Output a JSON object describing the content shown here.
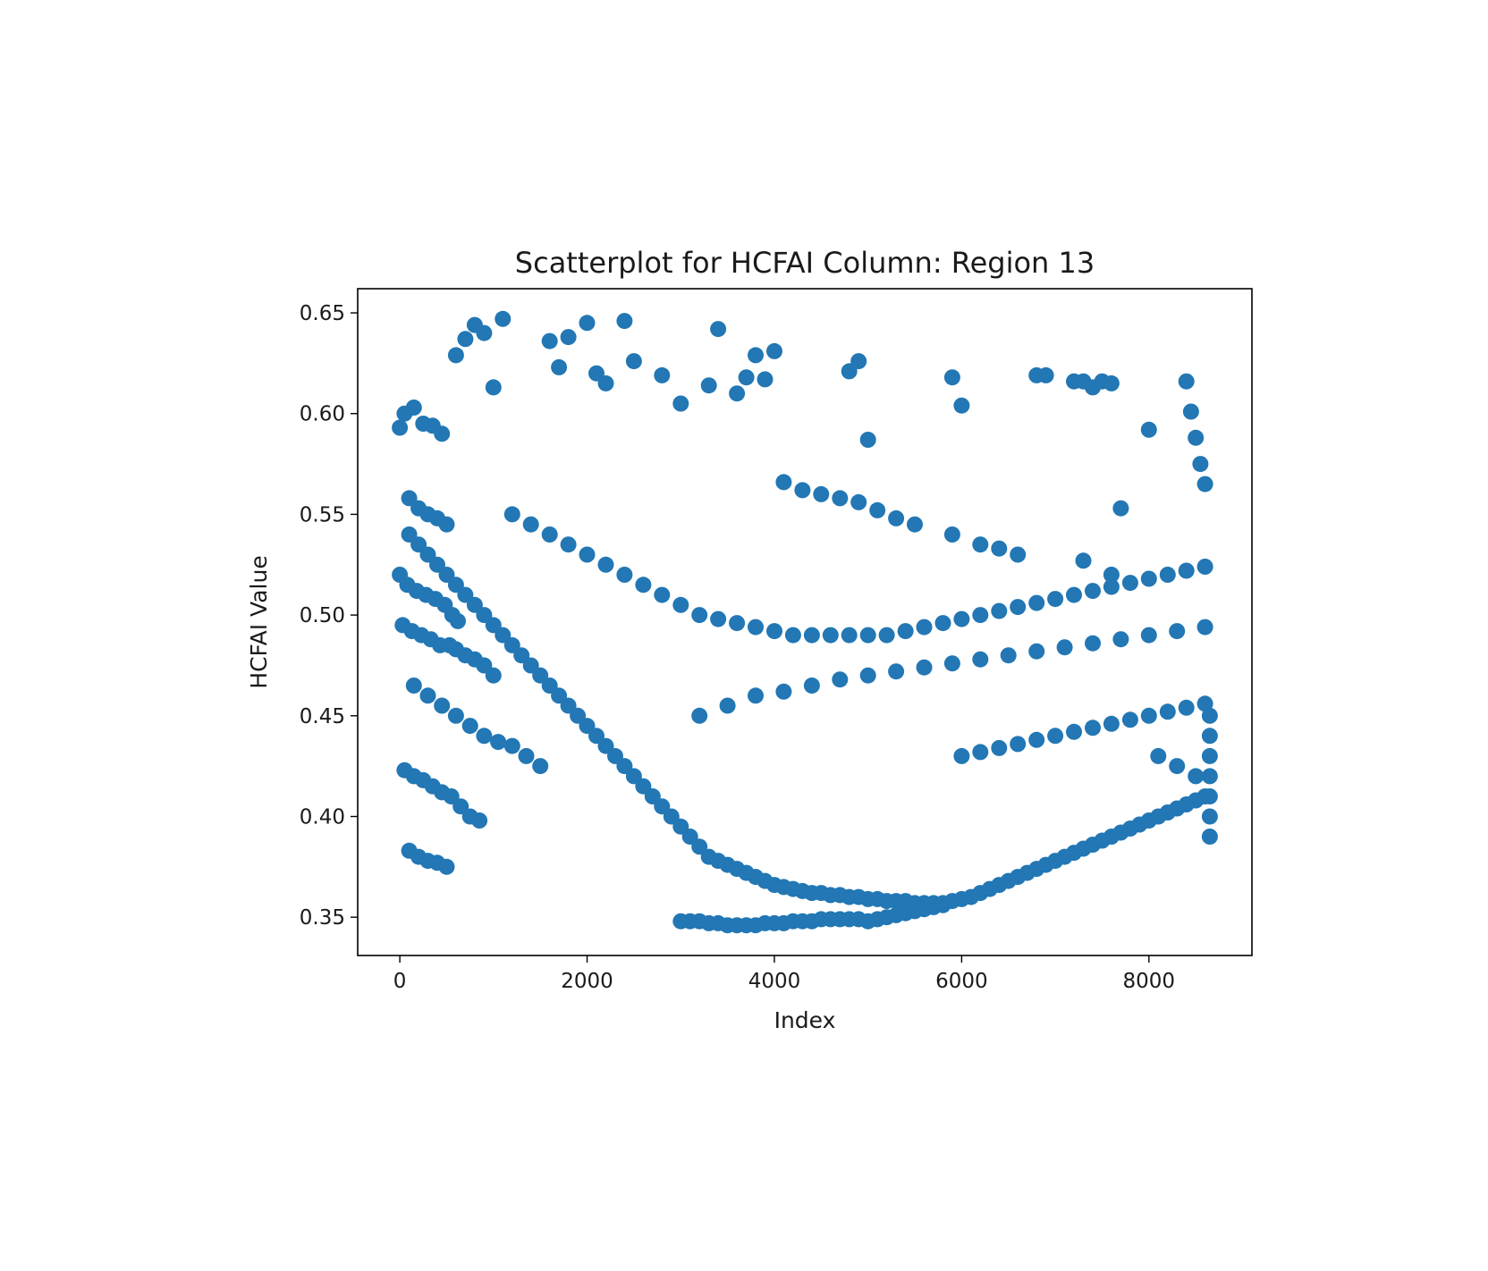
{
  "chart_data": {
    "type": "scatter",
    "title": "Scatterplot for HCFAI Column: Region 13",
    "xlabel": "Index",
    "ylabel": "HCFAI Value",
    "xlim": [
      -450,
      9100
    ],
    "ylim": [
      0.331,
      0.662
    ],
    "xticks": [
      0,
      2000,
      4000,
      6000,
      8000
    ],
    "xtick_labels": [
      "0",
      "2000",
      "4000",
      "6000",
      "8000"
    ],
    "yticks": [
      0.35,
      0.4,
      0.45,
      0.5,
      0.55,
      0.6,
      0.65
    ],
    "ytick_labels": [
      "0.35",
      "0.40",
      "0.45",
      "0.50",
      "0.55",
      "0.60",
      "0.65"
    ],
    "grid": false,
    "legend": "none",
    "marker_color": "#2277b4",
    "series": [
      {
        "x": [
          0,
          50,
          150,
          250,
          350,
          450,
          100,
          200,
          300,
          400,
          500,
          0,
          80,
          180,
          280,
          380,
          480,
          560,
          620,
          30,
          130,
          230,
          330,
          430,
          530,
          600,
          700,
          800,
          900,
          1000,
          150,
          300,
          450,
          600,
          750,
          900,
          1050,
          1200,
          1350,
          1500,
          50,
          150,
          250,
          350,
          450,
          550,
          650,
          750,
          850,
          100,
          200,
          300,
          400,
          500,
          100,
          200,
          300,
          400,
          500,
          600,
          700,
          800,
          900,
          1000,
          1100,
          1200,
          1300,
          1400,
          1500,
          1600,
          1700,
          1800,
          1900,
          2000,
          2100,
          2200,
          2300,
          2400,
          2500,
          2600,
          2700,
          2800,
          2900,
          3000,
          3100,
          3200,
          3300,
          3400,
          3500,
          3600,
          3700,
          3800,
          3900,
          4000,
          4100,
          4200,
          4300,
          4400,
          4500,
          4600,
          4700,
          4800,
          4900,
          5000,
          5100,
          5200,
          5300,
          5400,
          5500,
          5600,
          5700,
          5800,
          5900,
          6000,
          6100,
          6200,
          6300,
          6400,
          6500,
          6600,
          6700,
          6800,
          6900,
          7000,
          7100,
          7200,
          7300,
          7400,
          7500,
          7600,
          7700,
          7800,
          7900,
          8000,
          8100,
          8200,
          8300,
          8400,
          8500,
          8600,
          1200,
          1400,
          1600,
          1800,
          2000,
          2200,
          2400,
          2600,
          2800,
          3000,
          3200,
          3400,
          3600,
          3800,
          4000,
          4200,
          4400,
          4600,
          4800,
          5000,
          5200,
          5400,
          5600,
          5800,
          6000,
          6200,
          6400,
          6600,
          6800,
          7000,
          7200,
          7400,
          7600,
          7800,
          8000,
          8200,
          8400,
          8600,
          3000,
          3100,
          3200,
          3300,
          3400,
          3500,
          3600,
          3700,
          3800,
          3900,
          4000,
          4100,
          4200,
          4300,
          4400,
          4500,
          4600,
          4700,
          4800,
          4900,
          5000,
          5100,
          5200,
          5300,
          5400,
          5500,
          5600,
          5700,
          5800,
          3200,
          3500,
          3800,
          4100,
          4400,
          4700,
          5000,
          5300,
          5600,
          5900,
          6200,
          6500,
          6800,
          7100,
          7400,
          7700,
          8000,
          8300,
          8600,
          6000,
          6200,
          6400,
          6600,
          6800,
          7000,
          7200,
          7400,
          7600,
          7800,
          8000,
          8200,
          8400,
          8600,
          600,
          700,
          800,
          900,
          1000,
          1100,
          1600,
          1700,
          1800,
          2000,
          2100,
          2200,
          2400,
          2500,
          2800,
          3000,
          3300,
          3400,
          3600,
          3700,
          3800,
          3900,
          4000,
          4800,
          4900,
          5000,
          5900,
          6000,
          6800,
          6900,
          7200,
          7300,
          7400,
          7500,
          7600,
          8400,
          8450,
          8500,
          8550,
          8600,
          8000,
          7700,
          7600,
          7300,
          6600,
          6400,
          6200,
          5900,
          5500,
          5300,
          5100,
          4900,
          4700,
          4500,
          4300,
          4100,
          8100,
          8300,
          8500,
          8650,
          8650,
          8650,
          8650,
          8650,
          8650,
          8650
        ],
        "y": [
          0.593,
          0.6,
          0.603,
          0.595,
          0.594,
          0.59,
          0.558,
          0.553,
          0.55,
          0.548,
          0.545,
          0.52,
          0.515,
          0.512,
          0.51,
          0.508,
          0.505,
          0.5,
          0.497,
          0.495,
          0.492,
          0.49,
          0.488,
          0.485,
          0.485,
          0.483,
          0.48,
          0.478,
          0.475,
          0.47,
          0.465,
          0.46,
          0.455,
          0.45,
          0.445,
          0.44,
          0.437,
          0.435,
          0.43,
          0.425,
          0.423,
          0.42,
          0.418,
          0.415,
          0.412,
          0.41,
          0.405,
          0.4,
          0.398,
          0.383,
          0.38,
          0.378,
          0.377,
          0.375,
          0.54,
          0.535,
          0.53,
          0.525,
          0.52,
          0.515,
          0.51,
          0.505,
          0.5,
          0.495,
          0.49,
          0.485,
          0.48,
          0.475,
          0.47,
          0.465,
          0.46,
          0.455,
          0.45,
          0.445,
          0.44,
          0.435,
          0.43,
          0.425,
          0.42,
          0.415,
          0.41,
          0.405,
          0.4,
          0.395,
          0.39,
          0.385,
          0.38,
          0.378,
          0.376,
          0.374,
          0.372,
          0.37,
          0.368,
          0.366,
          0.365,
          0.364,
          0.363,
          0.362,
          0.362,
          0.361,
          0.361,
          0.36,
          0.36,
          0.359,
          0.359,
          0.358,
          0.358,
          0.358,
          0.357,
          0.357,
          0.357,
          0.357,
          0.358,
          0.359,
          0.36,
          0.362,
          0.364,
          0.366,
          0.368,
          0.37,
          0.372,
          0.374,
          0.376,
          0.378,
          0.38,
          0.382,
          0.384,
          0.386,
          0.388,
          0.39,
          0.392,
          0.394,
          0.396,
          0.398,
          0.4,
          0.402,
          0.404,
          0.406,
          0.408,
          0.41,
          0.55,
          0.545,
          0.54,
          0.535,
          0.53,
          0.525,
          0.52,
          0.515,
          0.51,
          0.505,
          0.5,
          0.498,
          0.496,
          0.494,
          0.492,
          0.49,
          0.49,
          0.49,
          0.49,
          0.49,
          0.49,
          0.492,
          0.494,
          0.496,
          0.498,
          0.5,
          0.502,
          0.504,
          0.506,
          0.508,
          0.51,
          0.512,
          0.514,
          0.516,
          0.518,
          0.52,
          0.522,
          0.524,
          0.348,
          0.348,
          0.348,
          0.347,
          0.347,
          0.346,
          0.346,
          0.346,
          0.346,
          0.347,
          0.347,
          0.347,
          0.348,
          0.348,
          0.348,
          0.349,
          0.349,
          0.349,
          0.349,
          0.349,
          0.348,
          0.349,
          0.35,
          0.351,
          0.352,
          0.353,
          0.354,
          0.355,
          0.356,
          0.45,
          0.455,
          0.46,
          0.462,
          0.465,
          0.468,
          0.47,
          0.472,
          0.474,
          0.476,
          0.478,
          0.48,
          0.482,
          0.484,
          0.486,
          0.488,
          0.49,
          0.492,
          0.494,
          0.43,
          0.432,
          0.434,
          0.436,
          0.438,
          0.44,
          0.442,
          0.444,
          0.446,
          0.448,
          0.45,
          0.452,
          0.454,
          0.456,
          0.629,
          0.637,
          0.644,
          0.64,
          0.613,
          0.647,
          0.636,
          0.623,
          0.638,
          0.645,
          0.62,
          0.615,
          0.646,
          0.626,
          0.619,
          0.605,
          0.614,
          0.642,
          0.61,
          0.618,
          0.629,
          0.617,
          0.631,
          0.621,
          0.626,
          0.587,
          0.618,
          0.604,
          0.619,
          0.619,
          0.616,
          0.616,
          0.613,
          0.616,
          0.615,
          0.616,
          0.601,
          0.588,
          0.575,
          0.565,
          0.592,
          0.553,
          0.52,
          0.527,
          0.53,
          0.533,
          0.535,
          0.54,
          0.545,
          0.548,
          0.552,
          0.556,
          0.558,
          0.56,
          0.562,
          0.566,
          0.43,
          0.425,
          0.42,
          0.45,
          0.44,
          0.43,
          0.42,
          0.41,
          0.4,
          0.39
        ]
      }
    ]
  }
}
